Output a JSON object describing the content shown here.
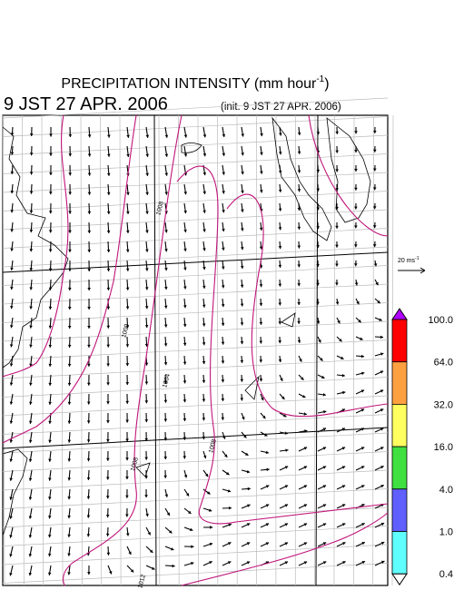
{
  "header": {
    "title": "PRECIPITATION INTENSITY (mm hour",
    "title_exponent": "-1",
    "title_end": ")",
    "valid_time": "9 JST 27 APR. 2006",
    "init_time": "(init. 9 JST 27 APR. 2006)"
  },
  "wind_scale": {
    "label": "20 ms",
    "exponent": "-1"
  },
  "isobar_labels": [
    "1008",
    "1000",
    "1004",
    "1008",
    "1008",
    "1012"
  ],
  "colorbar": {
    "levels": [
      {
        "value": 100,
        "label": "100.0"
      },
      {
        "value": 64,
        "label": "64.0"
      },
      {
        "value": 32,
        "label": "32.0"
      },
      {
        "value": 16,
        "label": "16.0"
      },
      {
        "value": 4,
        "label": "4.0"
      },
      {
        "value": 1,
        "label": "1.0"
      },
      {
        "value": 0.4,
        "label": "0.4"
      }
    ],
    "colors": [
      "#b000ff",
      "#ff0000",
      "#ffa040",
      "#ffff60",
      "#40e040",
      "#6060ff",
      "#60ffff",
      "#ffffff"
    ]
  }
}
